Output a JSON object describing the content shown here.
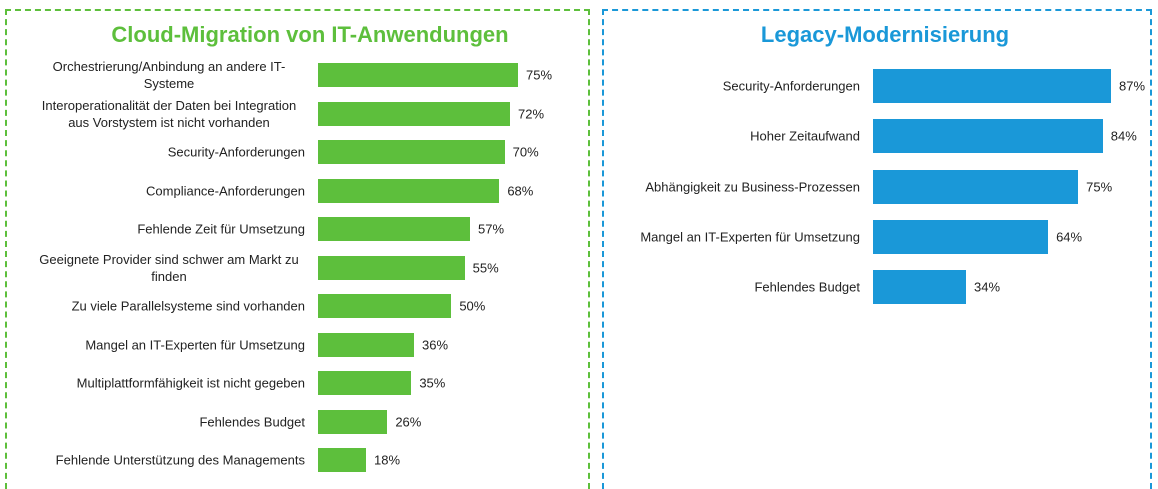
{
  "chart_data": [
    {
      "type": "bar",
      "orientation": "horizontal",
      "title": "Cloud-Migration von IT-Anwendungen",
      "color": "#5dbf3c",
      "categories": [
        "Orchestrierung/Anbindung an andere IT-Systeme",
        "Interoperationalität der Daten bei Integration aus Vorstystem ist nicht vorhanden",
        "Security-Anforderungen",
        "Compliance-Anforderungen",
        "Fehlende Zeit für Umsetzung",
        "Geeignete Provider sind schwer am Markt zu finden",
        "Zu viele Parallelsysteme sind vorhanden",
        "Mangel an IT-Experten für Umsetzung",
        "Multiplattformfähigkeit ist nicht gegeben",
        "Fehlendes Budget",
        "Fehlende Unterstützung des Managements"
      ],
      "values": [
        75,
        72,
        70,
        68,
        57,
        55,
        50,
        36,
        35,
        26,
        18
      ],
      "value_labels": [
        "75%",
        "72%",
        "70%",
        "68%",
        "57%",
        "55%",
        "50%",
        "36%",
        "35%",
        "26%",
        "18%"
      ]
    },
    {
      "type": "bar",
      "orientation": "horizontal",
      "title": "Legacy-Modernisierung",
      "color": "#1a98d8",
      "categories": [
        "Security-Anforderungen",
        "Hoher Zeitaufwand",
        "Abhängigkeit zu Business-Prozessen",
        "Mangel an IT-Experten für Umsetzung",
        "Fehlendes Budget"
      ],
      "values": [
        87,
        84,
        75,
        64,
        34
      ],
      "value_labels": [
        "87%",
        "84%",
        "75%",
        "64%",
        "34%"
      ]
    }
  ]
}
